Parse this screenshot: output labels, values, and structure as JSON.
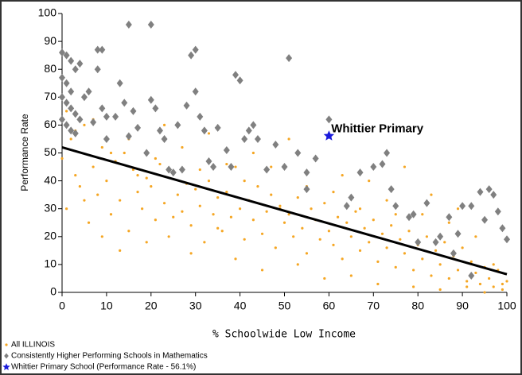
{
  "chart_data": {
    "type": "scatter",
    "y_label": "Performance Rate",
    "x_label": "% Schoolwide Low Income",
    "xlim": [
      0,
      100
    ],
    "ylim": [
      0,
      100
    ],
    "xticks": [
      0,
      10,
      20,
      30,
      40,
      50,
      60,
      70,
      80,
      90,
      100
    ],
    "yticks": [
      0,
      10,
      20,
      30,
      40,
      50,
      60,
      70,
      80,
      90,
      100
    ],
    "annotation": {
      "text": "Whittier Primary",
      "x": 60.5,
      "y": 58.5,
      "color": "#1a1adb"
    },
    "trend": {
      "x": [
        0,
        100
      ],
      "y": [
        52,
        6.5
      ],
      "color": "#000000"
    },
    "series": [
      {
        "name": "All ILLINOIS",
        "color": "#f5a623",
        "marker": "dot",
        "x": [
          0,
          1,
          2,
          3,
          4,
          5,
          6,
          7,
          8,
          9,
          10,
          11,
          12,
          13,
          14,
          15,
          16,
          17,
          18,
          19,
          20,
          21,
          22,
          23,
          24,
          25,
          26,
          27,
          28,
          29,
          30,
          31,
          32,
          33,
          34,
          35,
          36,
          37,
          38,
          39,
          40,
          41,
          42,
          43,
          44,
          45,
          46,
          47,
          48,
          49,
          50,
          51,
          52,
          53,
          54,
          55,
          56,
          57,
          58,
          59,
          60,
          61,
          62,
          63,
          64,
          65,
          66,
          67,
          68,
          69,
          70,
          71,
          72,
          73,
          74,
          75,
          76,
          77,
          78,
          79,
          80,
          81,
          82,
          83,
          84,
          85,
          86,
          87,
          88,
          89,
          90,
          91,
          92,
          93,
          94,
          95,
          96,
          97,
          98,
          99,
          100,
          1,
          3,
          5,
          7,
          9,
          11,
          13,
          15,
          17,
          19,
          21,
          23,
          25,
          27,
          29,
          31,
          33,
          35,
          37,
          39,
          41,
          43,
          45,
          47,
          49,
          51,
          53,
          55,
          57,
          59,
          61,
          63,
          65,
          67,
          69,
          71,
          73,
          75,
          77,
          79,
          81,
          83,
          85,
          87,
          89,
          91,
          93,
          95,
          97,
          99
        ],
        "values": [
          48,
          30,
          55,
          42,
          38,
          60,
          25,
          45,
          35,
          52,
          40,
          28,
          47,
          33,
          50,
          22,
          44,
          36,
          30,
          41,
          38,
          26,
          46,
          32,
          20,
          43,
          35,
          29,
          39,
          24,
          37,
          31,
          18,
          40,
          28,
          34,
          22,
          36,
          27,
          45,
          30,
          19,
          33,
          26,
          38,
          21,
          29,
          35,
          16,
          31,
          25,
          28,
          20,
          34,
          23,
          14,
          30,
          26,
          19,
          32,
          22,
          17,
          27,
          12,
          25,
          20,
          29,
          15,
          23,
          18,
          26,
          11,
          21,
          16,
          24,
          9,
          19,
          14,
          22,
          8,
          17,
          12,
          20,
          6,
          15,
          10,
          18,
          5,
          13,
          8,
          16,
          4,
          11,
          7,
          3,
          9,
          5,
          2,
          8,
          1,
          4,
          65,
          58,
          33,
          62,
          20,
          50,
          15,
          55,
          42,
          18,
          48,
          60,
          27,
          52,
          14,
          44,
          57,
          23,
          46,
          12,
          40,
          50,
          8,
          45,
          30,
          55,
          10,
          38,
          48,
          5,
          36,
          42,
          6,
          30,
          40,
          3,
          33,
          28,
          45,
          2,
          28,
          35,
          1,
          25,
          30,
          2,
          20,
          0,
          10,
          3
        ]
      },
      {
        "name": "Consistently Higher Performing Schools in Mathematics",
        "color": "#808080",
        "marker": "diamond",
        "x": [
          0,
          1,
          2,
          3,
          4,
          0,
          1,
          2,
          0,
          1,
          2,
          3,
          0,
          1,
          2,
          3,
          4,
          5,
          6,
          7,
          8,
          9,
          8,
          9,
          10,
          10,
          12,
          13,
          14,
          15,
          15,
          16,
          17,
          19,
          20,
          20,
          21,
          22,
          23,
          24,
          25,
          26,
          27,
          28,
          29,
          30,
          30,
          31,
          32,
          33,
          34,
          35,
          37,
          38,
          39,
          40,
          41,
          42,
          43,
          44,
          46,
          48,
          50,
          51,
          53,
          55,
          57,
          60,
          65,
          67,
          70,
          72,
          73,
          74,
          75,
          78,
          80,
          82,
          84,
          85,
          87,
          89,
          90,
          92,
          94,
          95,
          96,
          97,
          98,
          99,
          100,
          92,
          55,
          64,
          79,
          88
        ],
        "values": [
          86,
          85,
          83,
          80,
          82,
          77,
          75,
          72,
          70,
          68,
          66,
          64,
          62,
          60,
          58,
          57,
          62,
          70,
          72,
          61,
          87,
          87,
          80,
          66,
          63,
          55,
          63,
          75,
          68,
          96,
          56,
          65,
          59,
          50,
          96,
          69,
          66,
          58,
          55,
          44,
          43,
          60,
          44,
          67,
          85,
          87,
          72,
          63,
          58,
          47,
          45,
          59,
          51,
          45,
          78,
          76,
          55,
          58,
          60,
          55,
          44,
          53,
          45,
          84,
          50,
          43,
          48,
          62,
          34,
          43,
          45,
          46,
          50,
          37,
          31,
          27,
          18,
          32,
          18,
          20,
          27,
          21,
          31,
          31,
          36,
          26,
          37,
          35,
          29,
          23,
          19,
          6,
          37,
          31,
          28,
          14
        ]
      },
      {
        "name": "Whittier Primary School (Performance Rate - 56.1%)",
        "color": "#1a1adb",
        "marker": "star",
        "x": [
          60
        ],
        "values": [
          56.1
        ]
      }
    ]
  }
}
